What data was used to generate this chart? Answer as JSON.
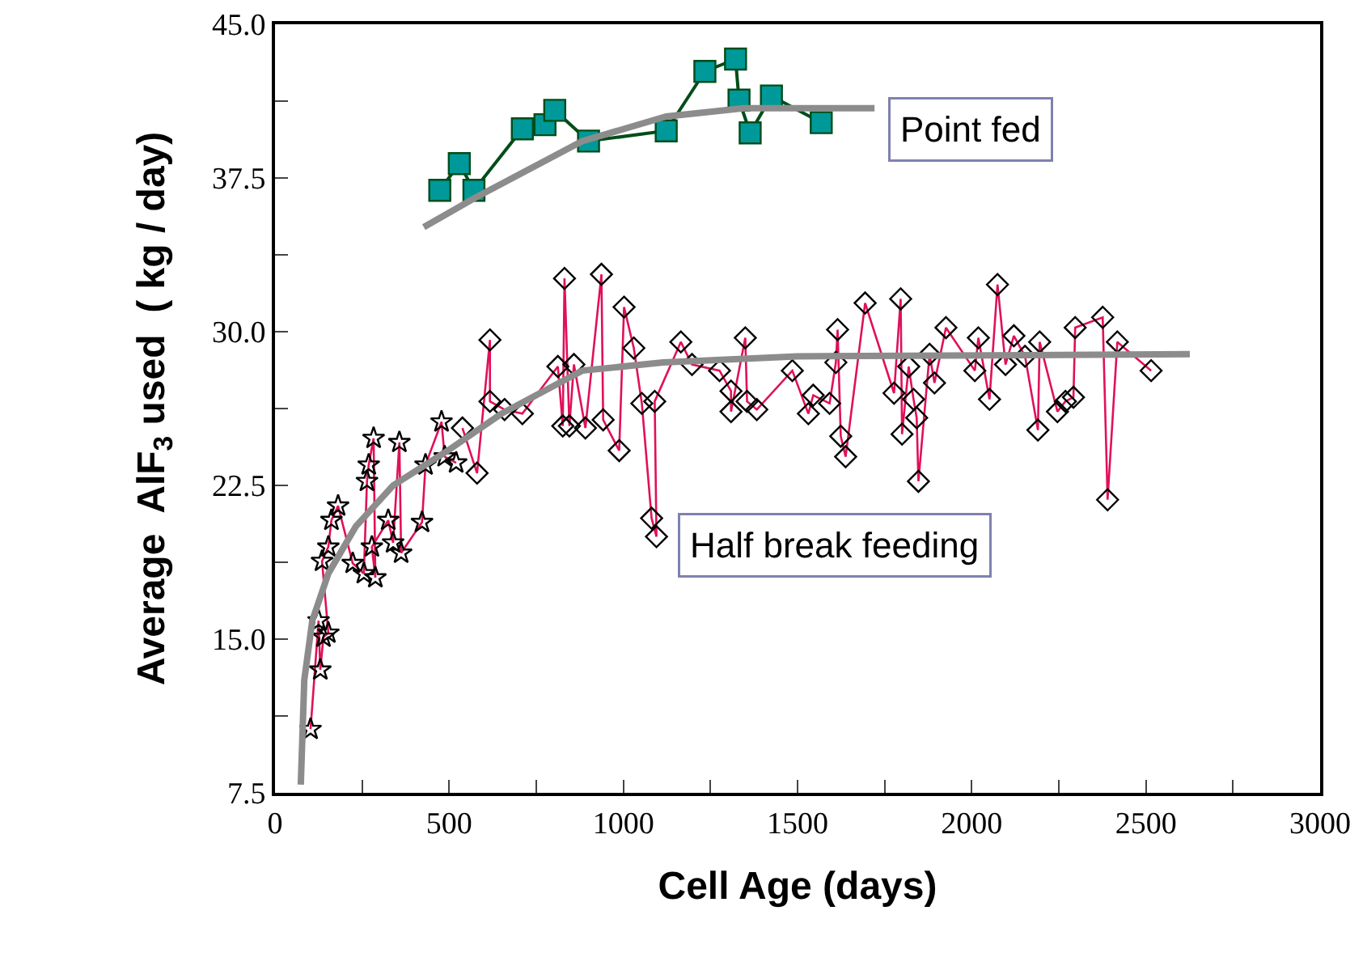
{
  "chart_data": {
    "type": "line",
    "xlabel": "Cell Age (days)",
    "ylabel": "Average  AlF$_{3}$ used  ( kg / day)",
    "xlim": [
      0,
      3000
    ],
    "xticks": [
      0,
      {
        "value": 250,
        "label": null
      },
      500,
      {
        "value": 750,
        "label": null
      },
      1000,
      {
        "value": 1250,
        "label": null
      },
      1500,
      {
        "value": 1750,
        "label": null
      },
      2000,
      {
        "value": 2250,
        "label": null
      },
      2500,
      {
        "value": 2750,
        "label": null
      },
      3000
    ],
    "ylim": [
      7.5,
      45
    ],
    "yticks": [
      7.5,
      {
        "value": 11.25,
        "label": null
      },
      {
        "value": 15,
        "label": "15.0"
      },
      {
        "value": 18.75,
        "label": null
      },
      22.5,
      {
        "value": 26.25,
        "label": null
      },
      {
        "value": 30,
        "label": "30.0"
      },
      {
        "value": 33.75,
        "label": null
      },
      37.5,
      {
        "value": 41.25,
        "label": null
      },
      {
        "value": 45,
        "label": "45.0"
      }
    ],
    "grid": false,
    "legend": false,
    "series": [
      {
        "name": "Point fed",
        "color": "#009999",
        "marker": "square",
        "x": [
          473,
          529,
          571,
          710,
          775,
          803,
          900,
          1123,
          1234,
          1322,
          1332,
          1364,
          1425,
          1568
        ],
        "values": [
          36.9,
          38.2,
          36.9,
          39.9,
          40.1,
          40.8,
          39.3,
          39.8,
          42.7,
          43.3,
          41.3,
          39.7,
          41.5,
          40.2
        ]
      },
      {
        "color": "#e0105a",
        "marker": "star",
        "x": [
          102,
          125,
          130,
          139,
          153,
          135,
          153,
          162,
          181,
          223,
          255,
          264,
          269,
          283,
          288,
          278,
          325,
          339,
          357,
          362,
          422,
          432,
          478,
          487,
          520
        ],
        "values": [
          10.6,
          15.9,
          13.5,
          15.1,
          15.3,
          18.8,
          19.5,
          20.8,
          21.5,
          18.7,
          18.2,
          22.7,
          23.5,
          24.8,
          18.0,
          19.5,
          20.8,
          19.7,
          24.6,
          19.2,
          20.7,
          23.5,
          25.6,
          23.9,
          23.6
        ]
      },
      {
        "name": "Half break feeding",
        "color": "#e0105a",
        "marker": "diamond",
        "x": [
          538,
          580,
          617,
          617,
          659,
          710,
          812,
          826,
          831,
          845,
          858,
          891,
          937,
          942,
          988,
          1002,
          1030,
          1053,
          1081,
          1095,
          1090,
          1165,
          1197,
          1276,
          1309,
          1309,
          1350,
          1355,
          1383,
          1485,
          1531,
          1545,
          1592,
          1610,
          1615,
          1624,
          1638,
          1694,
          1777,
          1796,
          1800,
          1819,
          1833,
          1842,
          1847,
          1879,
          1893,
          1926,
          2009,
          2019,
          2051,
          2074,
          2097,
          2121,
          2153,
          2190,
          2195,
          2246,
          2269,
          2292,
          2297,
          2376,
          2390,
          2418,
          2515
        ],
        "values": [
          25.3,
          23.1,
          29.6,
          26.6,
          26.2,
          26.0,
          28.3,
          25.4,
          32.6,
          25.4,
          28.4,
          25.3,
          32.8,
          25.7,
          24.2,
          31.2,
          29.2,
          26.5,
          20.9,
          20.0,
          26.6,
          29.5,
          28.4,
          28.1,
          27.1,
          26.1,
          29.7,
          26.6,
          26.2,
          28.1,
          26.0,
          26.9,
          26.5,
          28.5,
          30.1,
          24.9,
          23.9,
          31.4,
          27.0,
          31.6,
          25.0,
          28.3,
          26.7,
          25.8,
          22.7,
          28.9,
          27.5,
          30.2,
          28.1,
          29.7,
          26.7,
          32.3,
          28.4,
          29.8,
          28.8,
          25.2,
          29.5,
          26.1,
          26.6,
          26.8,
          30.2,
          30.7,
          21.8,
          29.5,
          28.1
        ]
      },
      {
        "color": "#8c8c8c",
        "marker": "none",
        "x": [
          427,
          571,
          882,
          1123,
          1346,
          1721
        ],
        "values": [
          35.1,
          36.5,
          39.3,
          40.5,
          40.9,
          40.9
        ]
      },
      {
        "color": "#8c8c8c",
        "marker": "none",
        "x": [
          74,
          84,
          107,
          153,
          232,
          339,
          496,
          650,
          882,
          1114,
          1499,
          2626
        ],
        "values": [
          7.9,
          13.0,
          15.9,
          18.2,
          20.5,
          22.5,
          24.2,
          26.0,
          28.1,
          28.5,
          28.8,
          28.9
        ]
      }
    ]
  }
}
